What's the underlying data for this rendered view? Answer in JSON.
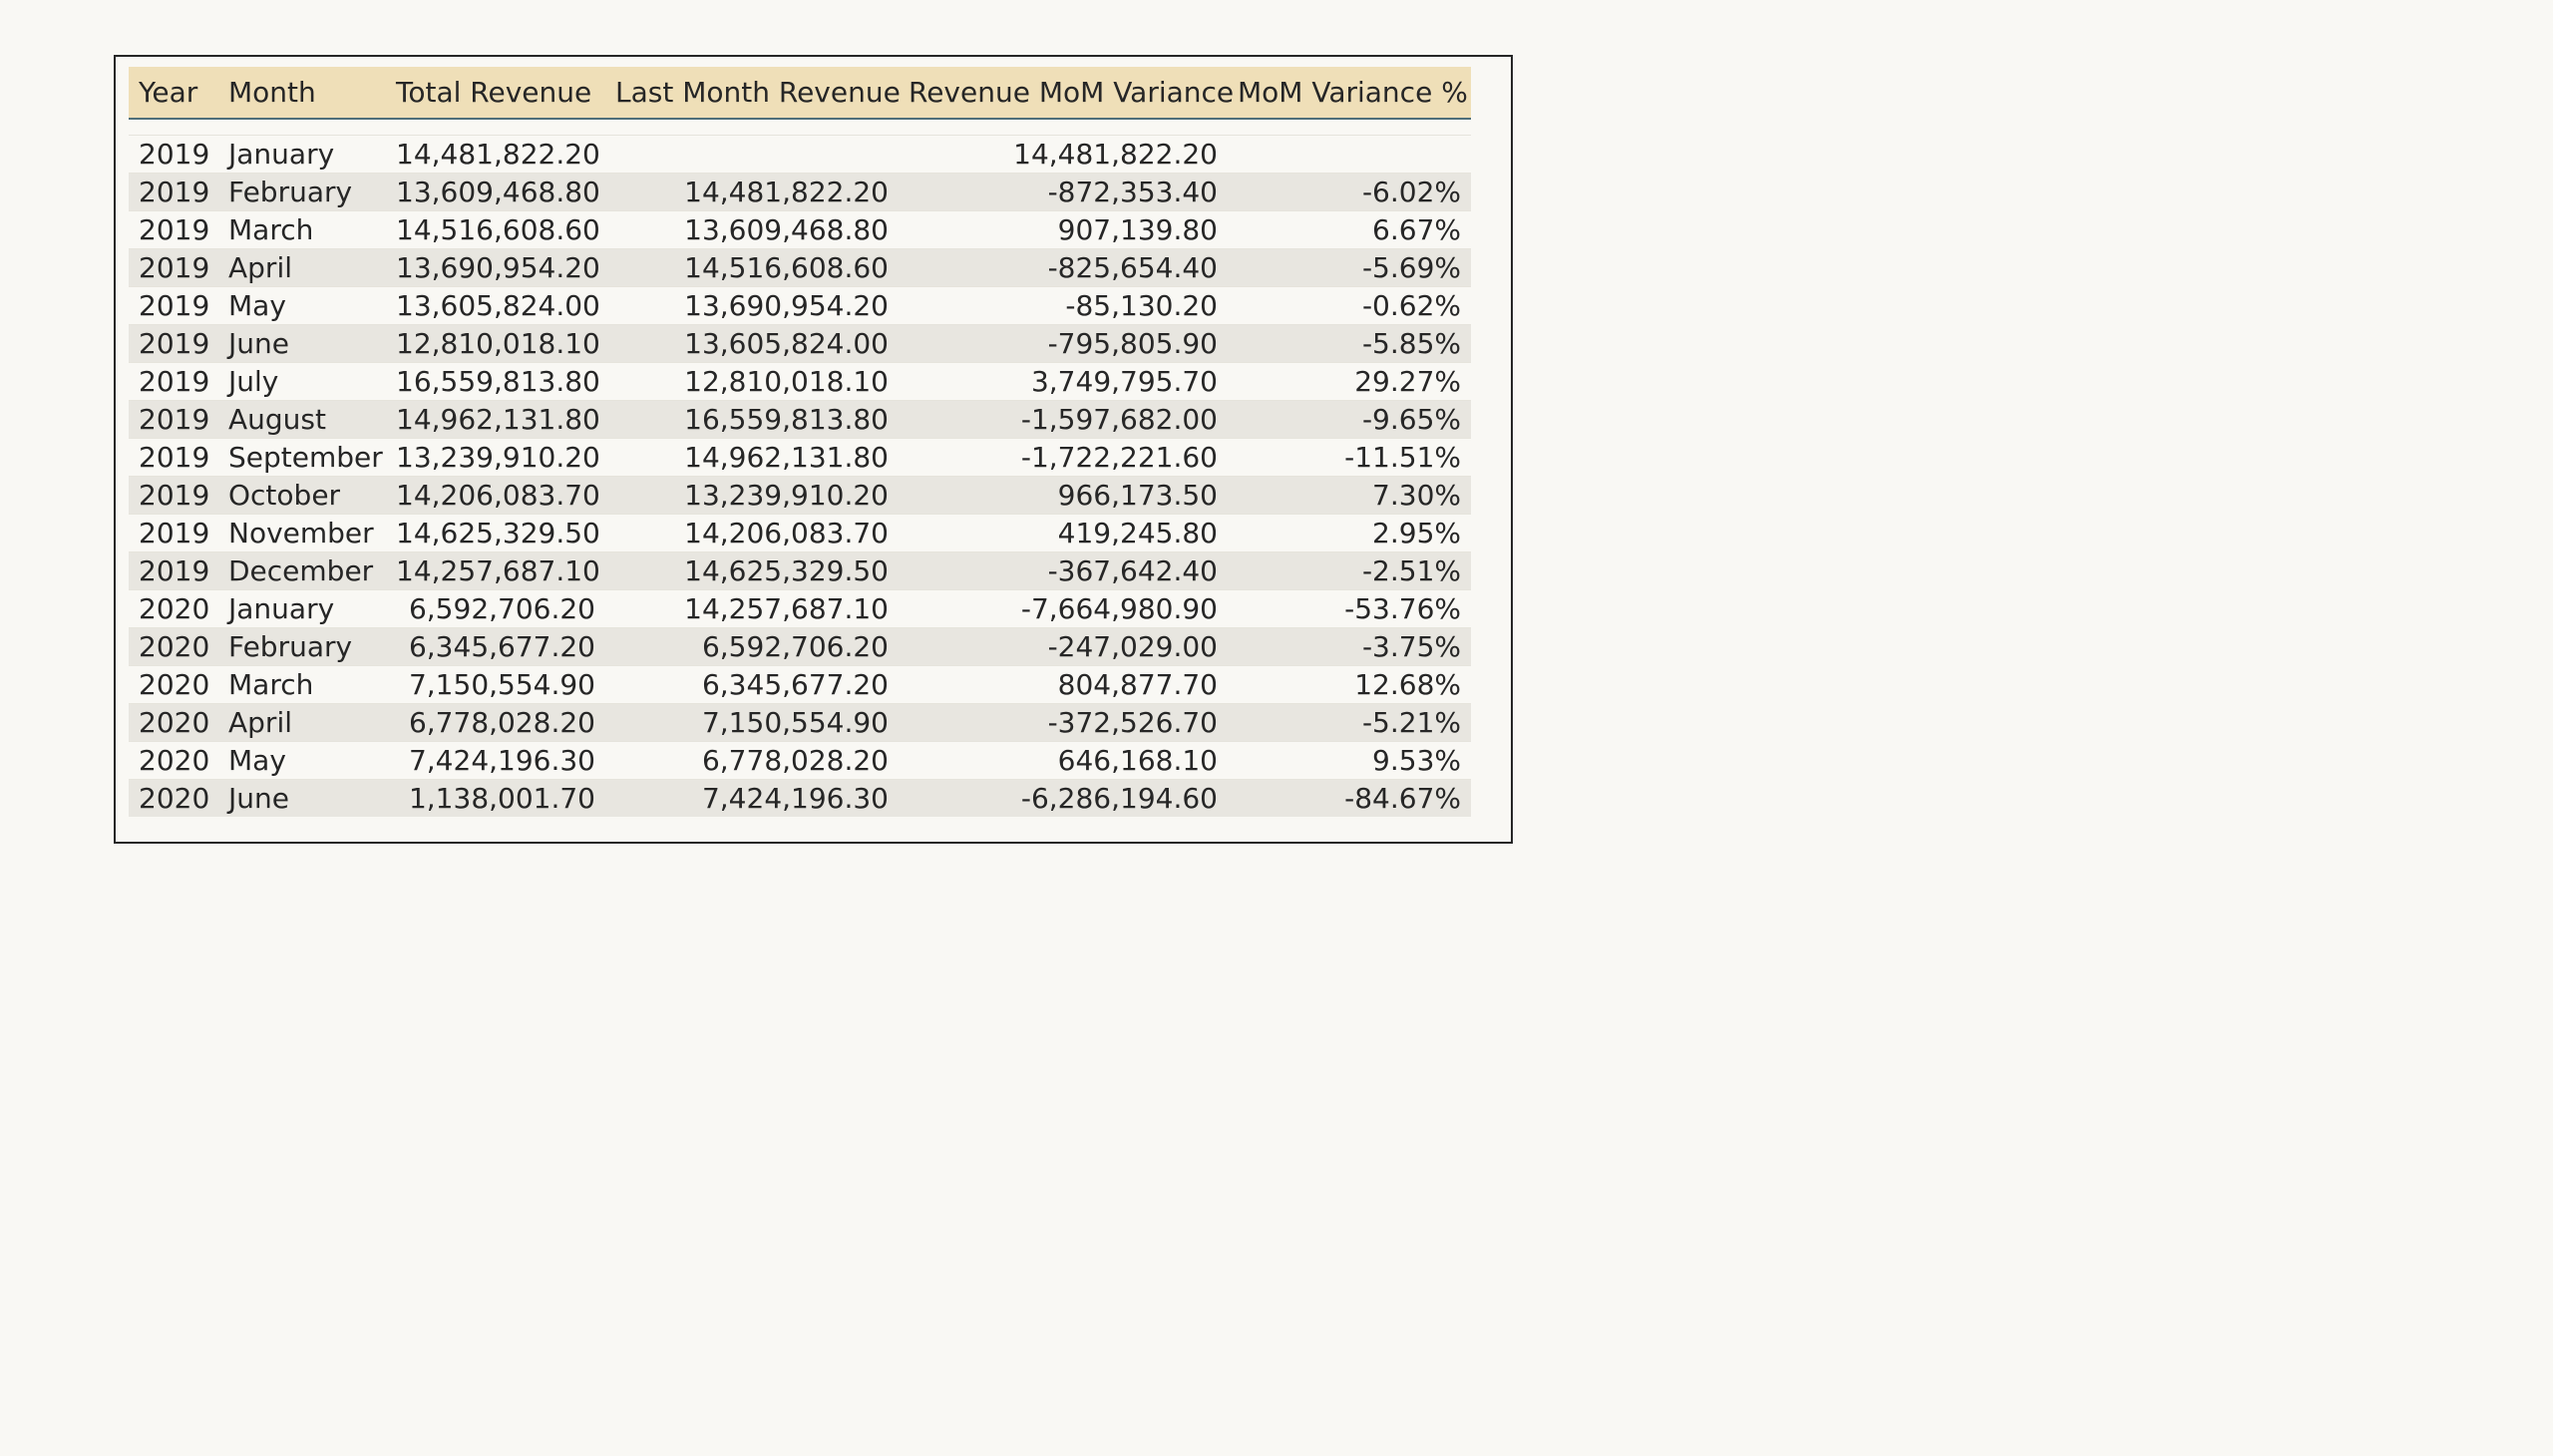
{
  "table": {
    "headers": [
      "Year",
      "Month",
      "Total Revenue",
      "Last Month Revenue",
      "Revenue MoM Variance",
      "MoM Variance %"
    ],
    "rows": [
      [
        "2019",
        "January",
        "14,481,822.20",
        "",
        "14,481,822.20",
        ""
      ],
      [
        "2019",
        "February",
        "13,609,468.80",
        "14,481,822.20",
        "-872,353.40",
        "-6.02%"
      ],
      [
        "2019",
        "March",
        "14,516,608.60",
        "13,609,468.80",
        "907,139.80",
        "6.67%"
      ],
      [
        "2019",
        "April",
        "13,690,954.20",
        "14,516,608.60",
        "-825,654.40",
        "-5.69%"
      ],
      [
        "2019",
        "May",
        "13,605,824.00",
        "13,690,954.20",
        "-85,130.20",
        "-0.62%"
      ],
      [
        "2019",
        "June",
        "12,810,018.10",
        "13,605,824.00",
        "-795,805.90",
        "-5.85%"
      ],
      [
        "2019",
        "July",
        "16,559,813.80",
        "12,810,018.10",
        "3,749,795.70",
        "29.27%"
      ],
      [
        "2019",
        "August",
        "14,962,131.80",
        "16,559,813.80",
        "-1,597,682.00",
        "-9.65%"
      ],
      [
        "2019",
        "September",
        "13,239,910.20",
        "14,962,131.80",
        "-1,722,221.60",
        "-11.51%"
      ],
      [
        "2019",
        "October",
        "14,206,083.70",
        "13,239,910.20",
        "966,173.50",
        "7.30%"
      ],
      [
        "2019",
        "November",
        "14,625,329.50",
        "14,206,083.70",
        "419,245.80",
        "2.95%"
      ],
      [
        "2019",
        "December",
        "14,257,687.10",
        "14,625,329.50",
        "-367,642.40",
        "-2.51%"
      ],
      [
        "2020",
        "January",
        "6,592,706.20",
        "14,257,687.10",
        "-7,664,980.90",
        "-53.76%"
      ],
      [
        "2020",
        "February",
        "6,345,677.20",
        "6,592,706.20",
        "-247,029.00",
        "-3.75%"
      ],
      [
        "2020",
        "March",
        "7,150,554.90",
        "6,345,677.20",
        "804,877.70",
        "12.68%"
      ],
      [
        "2020",
        "April",
        "6,778,028.20",
        "7,150,554.90",
        "-372,526.70",
        "-5.21%"
      ],
      [
        "2020",
        "May",
        "7,424,196.30",
        "6,778,028.20",
        "646,168.10",
        "9.53%"
      ],
      [
        "2020",
        "June",
        "1,138,001.70",
        "7,424,196.30",
        "-6,286,194.60",
        "-84.67%"
      ]
    ]
  },
  "colors": {
    "header_background": "#efdfb8",
    "row_stripe": "#e8e6e0",
    "page_background": "#f9f8f4",
    "header_rule": "#4f6f7a"
  }
}
